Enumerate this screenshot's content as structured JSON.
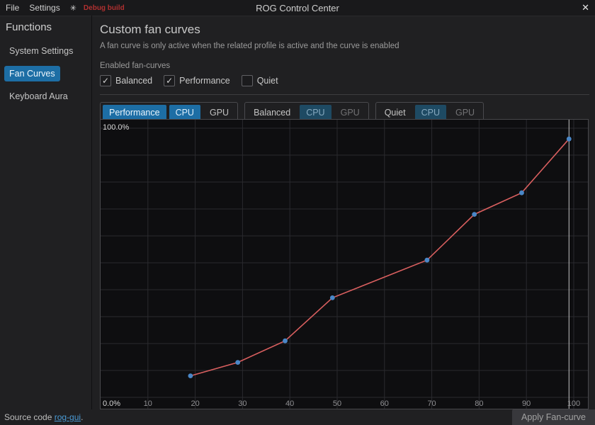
{
  "titlebar": {
    "title": "ROG Control Center",
    "menus": [
      {
        "label": "File"
      },
      {
        "label": "Settings"
      }
    ],
    "theme_icon_glyph": "✳",
    "debug_label": "Debug build",
    "close_glyph": "✕"
  },
  "sidebar": {
    "title": "Functions",
    "items": [
      {
        "label": "System Settings",
        "selected": false
      },
      {
        "label": "Fan Curves",
        "selected": true
      },
      {
        "label": "Keyboard Aura",
        "selected": false
      }
    ]
  },
  "main": {
    "heading": "Custom fan curves",
    "description": "A fan curve is only active when the related profile is active and the curve is enabled",
    "enabled_label": "Enabled fan-curves",
    "check_glyph": "✓",
    "checkboxes": [
      {
        "label": "Balanced",
        "checked": true
      },
      {
        "label": "Performance",
        "checked": true
      },
      {
        "label": "Quiet",
        "checked": false
      }
    ],
    "profile_tabs": [
      {
        "profile": "Performance",
        "profile_selected": true,
        "cpu_label": "CPU",
        "cpu_style": "active",
        "gpu_label": "GPU",
        "gpu_style": "normal"
      },
      {
        "profile": "Balanced",
        "profile_selected": false,
        "cpu_label": "CPU",
        "cpu_style": "inactive",
        "gpu_label": "GPU",
        "gpu_style": "dim"
      },
      {
        "profile": "Quiet",
        "profile_selected": false,
        "cpu_label": "CPU",
        "cpu_style": "inactive",
        "gpu_label": "GPU",
        "gpu_style": "dim"
      }
    ]
  },
  "chart_data": {
    "type": "line",
    "title": "",
    "xlabel": "",
    "ylabel": "",
    "x": [
      19,
      29,
      39,
      49,
      69,
      79,
      89,
      99
    ],
    "y": [
      8,
      13,
      21,
      37,
      51,
      68,
      76,
      96
    ],
    "x_ticks": [
      10,
      20,
      30,
      40,
      50,
      60,
      70,
      80,
      90,
      100
    ],
    "xlim": [
      0,
      103
    ],
    "ylim": [
      0,
      100
    ],
    "y_grid_step": 10,
    "y_axis_labels": [
      "100.0%",
      "0.0%"
    ],
    "cursor_x": 99,
    "grid_on": true,
    "line_color": "#d95f5f",
    "point_color": "#4a87c7",
    "grid_color": "#2a2a2e",
    "cursor_color": "#c4c4c4",
    "tick_color": "#8f8f92",
    "axis_label_color": "#d6d6d6"
  },
  "footer": {
    "source_prefix": "Source code ",
    "source_link": "rog-gui",
    "source_suffix": ".",
    "apply_button": "Apply Fan-curve"
  }
}
